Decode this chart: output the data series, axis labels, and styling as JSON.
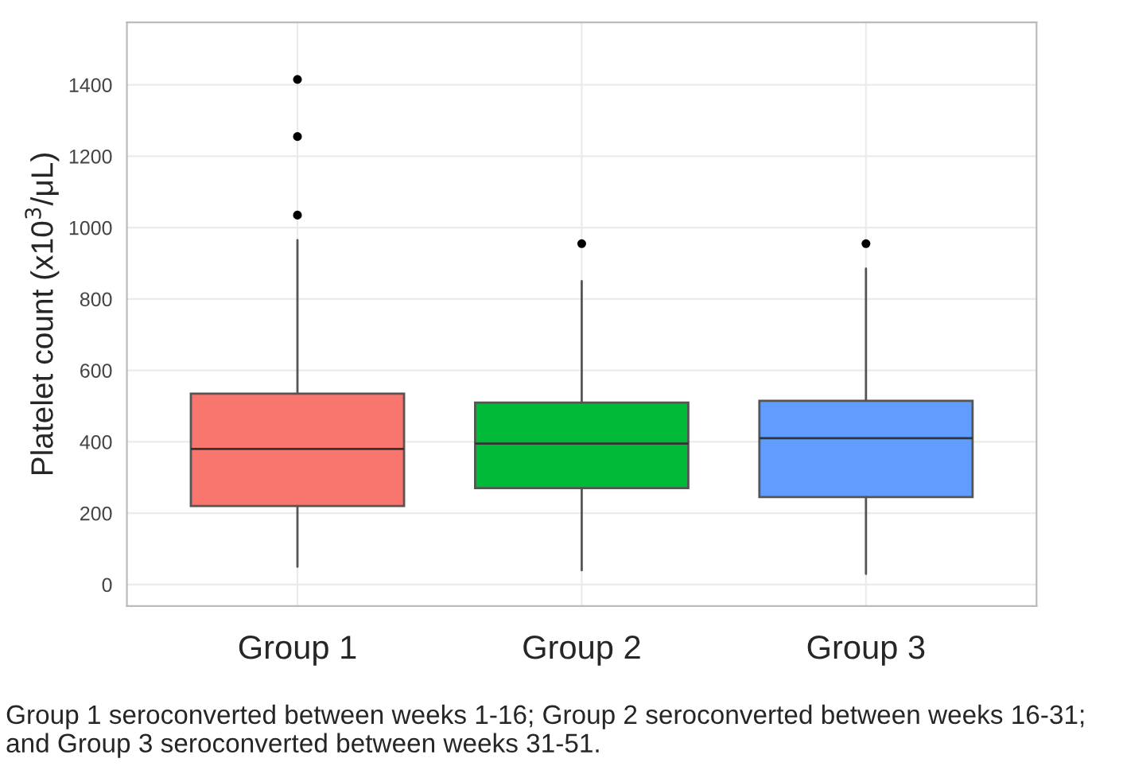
{
  "chart_data": {
    "type": "box",
    "categories": [
      "Group 1",
      "Group 2",
      "Group 3"
    ],
    "colors": [
      "#f8766d",
      "#00ba38",
      "#619cff"
    ],
    "boxes": [
      {
        "low": 50,
        "q1": 220,
        "median": 380,
        "q3": 535,
        "high": 965,
        "outliers": [
          1035,
          1255,
          1415
        ]
      },
      {
        "low": 40,
        "q1": 270,
        "median": 395,
        "q3": 510,
        "high": 850,
        "outliers": [
          955
        ]
      },
      {
        "low": 30,
        "q1": 245,
        "median": 410,
        "q3": 515,
        "high": 885,
        "outliers": [
          955
        ]
      }
    ],
    "ylabel": "Platelet count (x10$^{3}$/μL)",
    "ylim": [
      -60,
      1575
    ],
    "yticks": [
      0,
      200,
      400,
      600,
      800,
      1000,
      1200,
      1400
    ],
    "grid": true,
    "annotations": [
      "Group 1 seroconverted between weeks 1-16; Group 2 seroconverted between weeks 16-31; and Group 3 seroconverted between weeks 31-51."
    ]
  }
}
